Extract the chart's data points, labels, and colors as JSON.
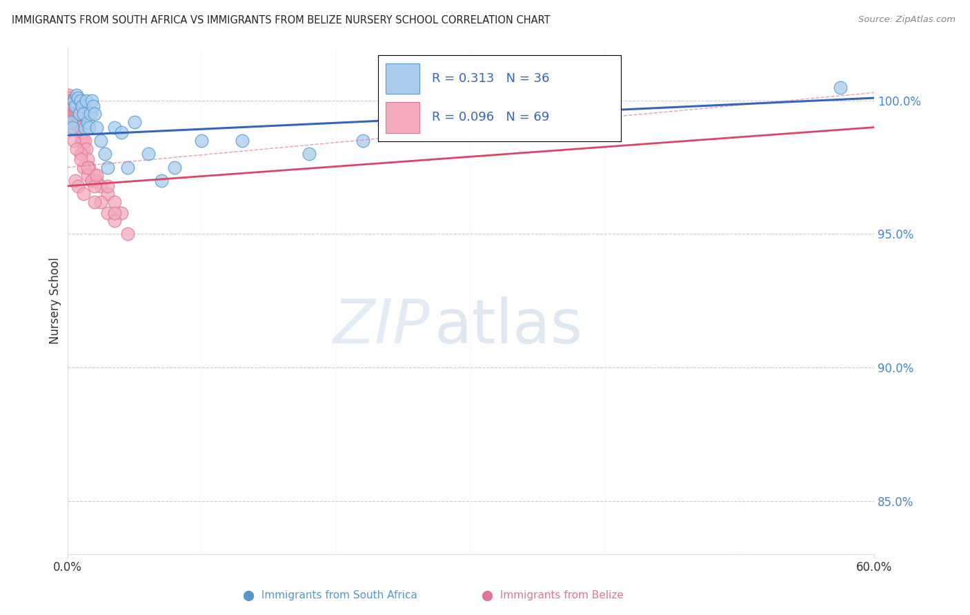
{
  "title": "IMMIGRANTS FROM SOUTH AFRICA VS IMMIGRANTS FROM BELIZE NURSERY SCHOOL CORRELATION CHART",
  "source": "Source: ZipAtlas.com",
  "ylabel": "Nursery School",
  "y_ticks": [
    85.0,
    90.0,
    95.0,
    100.0
  ],
  "y_tick_labels": [
    "85.0%",
    "90.0%",
    "95.0%",
    "100.0%"
  ],
  "x_range": [
    0.0,
    60.0
  ],
  "y_range": [
    83.0,
    102.0
  ],
  "south_africa_color": "#aaccee",
  "belize_color": "#f4aabb",
  "south_africa_edge_color": "#5599cc",
  "belize_edge_color": "#dd7799",
  "south_africa_line_color": "#3366bb",
  "belize_line_color": "#dd4466",
  "south_africa_R": 0.313,
  "belize_R": 0.096,
  "south_africa_N": 36,
  "belize_N": 69,
  "sa_x": [
    0.3,
    0.4,
    0.5,
    0.6,
    0.7,
    0.8,
    0.9,
    1.0,
    1.1,
    1.2,
    1.3,
    1.4,
    1.5,
    1.6,
    1.7,
    1.8,
    1.9,
    2.0,
    2.2,
    2.5,
    2.8,
    3.0,
    3.5,
    4.0,
    4.5,
    5.0,
    6.0,
    7.0,
    8.0,
    10.0,
    13.0,
    18.0,
    22.0,
    30.0,
    40.0,
    57.5
  ],
  "sa_y": [
    99.2,
    99.0,
    100.0,
    99.8,
    100.2,
    100.1,
    99.5,
    100.0,
    99.8,
    99.5,
    99.0,
    100.0,
    99.2,
    99.0,
    99.5,
    100.0,
    99.8,
    99.5,
    99.0,
    98.5,
    98.0,
    97.5,
    99.0,
    98.8,
    97.5,
    99.2,
    98.0,
    97.0,
    97.5,
    98.5,
    98.5,
    98.0,
    98.5,
    99.0,
    99.5,
    100.5
  ],
  "bz_x": [
    0.05,
    0.1,
    0.12,
    0.15,
    0.18,
    0.2,
    0.22,
    0.25,
    0.28,
    0.3,
    0.32,
    0.35,
    0.38,
    0.4,
    0.42,
    0.45,
    0.48,
    0.5,
    0.52,
    0.55,
    0.58,
    0.6,
    0.62,
    0.65,
    0.7,
    0.72,
    0.75,
    0.8,
    0.82,
    0.85,
    0.9,
    0.92,
    0.95,
    1.0,
    1.05,
    1.1,
    1.15,
    1.2,
    1.3,
    1.4,
    1.5,
    1.6,
    1.8,
    2.0,
    2.2,
    2.5,
    3.0,
    3.5,
    4.0,
    1.0,
    1.2,
    1.5,
    1.8,
    2.0,
    2.5,
    3.0,
    3.5,
    4.5,
    0.5,
    0.7,
    1.0,
    1.5,
    2.2,
    3.0,
    0.6,
    0.8,
    1.2,
    2.0,
    3.5
  ],
  "bz_y": [
    100.2,
    99.8,
    100.0,
    100.1,
    99.9,
    100.0,
    99.8,
    99.5,
    100.0,
    99.8,
    99.5,
    99.2,
    99.8,
    99.5,
    100.0,
    99.8,
    99.5,
    100.0,
    99.2,
    99.0,
    99.5,
    99.8,
    100.0,
    99.5,
    99.2,
    99.8,
    99.5,
    99.2,
    99.5,
    99.0,
    99.2,
    99.5,
    98.8,
    99.0,
    98.5,
    98.8,
    98.5,
    98.2,
    98.5,
    98.2,
    97.8,
    97.5,
    97.0,
    97.2,
    97.0,
    96.8,
    96.5,
    96.2,
    95.8,
    98.0,
    97.5,
    97.2,
    97.0,
    96.8,
    96.2,
    95.8,
    95.5,
    95.0,
    98.5,
    98.2,
    97.8,
    97.5,
    97.2,
    96.8,
    97.0,
    96.8,
    96.5,
    96.2,
    95.8
  ],
  "sa_trend_x0": 0.0,
  "sa_trend_y0": 98.7,
  "sa_trend_x1": 60.0,
  "sa_trend_y1": 100.1,
  "bz_trend_x0": 0.0,
  "bz_trend_y0": 96.8,
  "bz_trend_x1": 60.0,
  "bz_trend_y1": 99.0,
  "bz_dashed_x0": 0.0,
  "bz_dashed_y0": 97.5,
  "bz_dashed_x1": 60.0,
  "bz_dashed_y1": 100.3
}
